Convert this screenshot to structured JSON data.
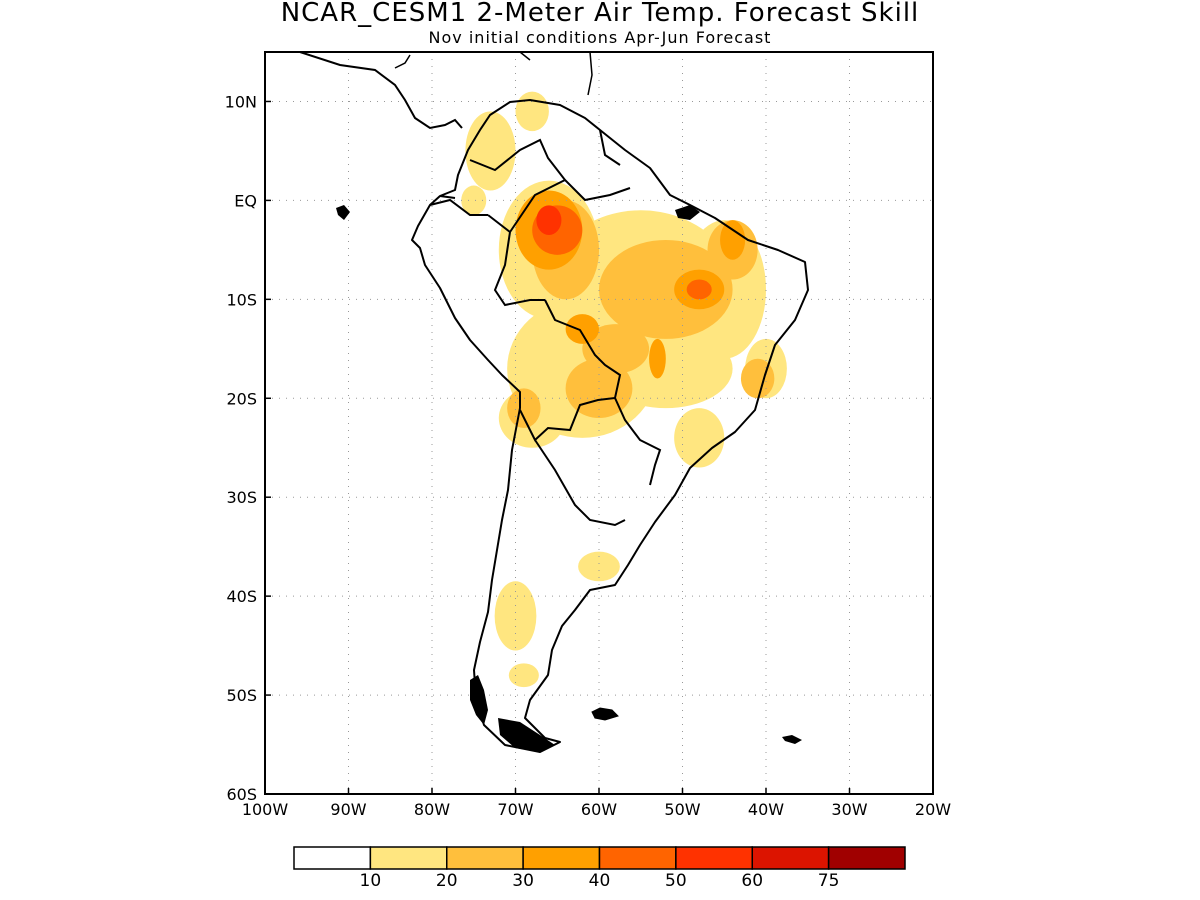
{
  "title": "NCAR_CESM1 2-Meter Air Temp. Forecast Skill",
  "subtitle": "Nov initial conditions  Apr-Jun Forecast",
  "map": {
    "lon_range": [
      -100,
      -20
    ],
    "lat_range": [
      -60,
      15
    ],
    "lon_ticks": [
      {
        "value": -100,
        "label": "100W"
      },
      {
        "value": -90,
        "label": "90W"
      },
      {
        "value": -80,
        "label": "80W"
      },
      {
        "value": -70,
        "label": "70W"
      },
      {
        "value": -60,
        "label": "60W"
      },
      {
        "value": -50,
        "label": "50W"
      },
      {
        "value": -40,
        "label": "40W"
      },
      {
        "value": -30,
        "label": "30W"
      },
      {
        "value": -20,
        "label": "20W"
      }
    ],
    "lat_ticks": [
      {
        "value": 10,
        "label": "10N"
      },
      {
        "value": 0,
        "label": "EQ"
      },
      {
        "value": -10,
        "label": "10S"
      },
      {
        "value": -20,
        "label": "20S"
      },
      {
        "value": -30,
        "label": "30S"
      },
      {
        "value": -40,
        "label": "40S"
      },
      {
        "value": -50,
        "label": "50S"
      },
      {
        "value": -60,
        "label": "60S"
      }
    ],
    "grid": "dotted"
  },
  "colorbar": {
    "labels": [
      "10",
      "20",
      "30",
      "40",
      "50",
      "60",
      "75"
    ],
    "colors": [
      "#ffffff",
      "#ffe680",
      "#ffbf3c",
      "#ffa000",
      "#ff6400",
      "#ff3200",
      "#dc1400",
      "#a00000"
    ]
  },
  "skill_regions": [
    {
      "level": 1,
      "lon": -66,
      "lat": -5,
      "rx": 6,
      "ry": 7
    },
    {
      "level": 1,
      "lon": -55,
      "lat": -10,
      "rx": 12,
      "ry": 9
    },
    {
      "level": 1,
      "lon": -45,
      "lat": -9,
      "rx": 5,
      "ry": 7
    },
    {
      "level": 1,
      "lon": -62,
      "lat": -17,
      "rx": 9,
      "ry": 7
    },
    {
      "level": 1,
      "lon": -68,
      "lat": -22,
      "rx": 4,
      "ry": 3
    },
    {
      "level": 1,
      "lon": -52,
      "lat": -17,
      "rx": 8,
      "ry": 4
    },
    {
      "level": 1,
      "lon": -48,
      "lat": -24,
      "rx": 3,
      "ry": 3
    },
    {
      "level": 1,
      "lon": -73,
      "lat": 5,
      "rx": 3,
      "ry": 4
    },
    {
      "level": 1,
      "lon": -68,
      "lat": 9,
      "rx": 2,
      "ry": 2
    },
    {
      "level": 1,
      "lon": -60,
      "lat": -37,
      "rx": 2.5,
      "ry": 1.5
    },
    {
      "level": 1,
      "lon": -70,
      "lat": -42,
      "rx": 2.5,
      "ry": 3.5
    },
    {
      "level": 1,
      "lon": -69,
      "lat": -48,
      "rx": 1.8,
      "ry": 1.2
    },
    {
      "level": 1,
      "lon": -40,
      "lat": -17,
      "rx": 2.5,
      "ry": 3
    },
    {
      "level": 1,
      "lon": -75,
      "lat": 0,
      "rx": 1.5,
      "ry": 1.5
    },
    {
      "level": 2,
      "lon": -64,
      "lat": -5,
      "rx": 4,
      "ry": 5
    },
    {
      "level": 2,
      "lon": -52,
      "lat": -9,
      "rx": 8,
      "ry": 5
    },
    {
      "level": 2,
      "lon": -58,
      "lat": -15,
      "rx": 4,
      "ry": 2.5
    },
    {
      "level": 2,
      "lon": -44,
      "lat": -5,
      "rx": 3,
      "ry": 3
    },
    {
      "level": 2,
      "lon": -41,
      "lat": -18,
      "rx": 2,
      "ry": 2
    },
    {
      "level": 2,
      "lon": -60,
      "lat": -19,
      "rx": 4,
      "ry": 3
    },
    {
      "level": 2,
      "lon": -69,
      "lat": -21,
      "rx": 2,
      "ry": 2
    },
    {
      "level": 3,
      "lon": -66,
      "lat": -3,
      "rx": 4,
      "ry": 4
    },
    {
      "level": 3,
      "lon": -48,
      "lat": -9,
      "rx": 3,
      "ry": 2
    },
    {
      "level": 3,
      "lon": -44,
      "lat": -4,
      "rx": 1.5,
      "ry": 2
    },
    {
      "level": 3,
      "lon": -53,
      "lat": -16,
      "rx": 1,
      "ry": 2
    },
    {
      "level": 3,
      "lon": -62,
      "lat": -13,
      "rx": 2,
      "ry": 1.5
    },
    {
      "level": 4,
      "lon": -65,
      "lat": -3,
      "rx": 3,
      "ry": 2.5
    },
    {
      "level": 4,
      "lon": -48,
      "lat": -9,
      "rx": 1.5,
      "ry": 1
    },
    {
      "level": 5,
      "lon": -66,
      "lat": -2,
      "rx": 1.5,
      "ry": 1.5
    }
  ]
}
